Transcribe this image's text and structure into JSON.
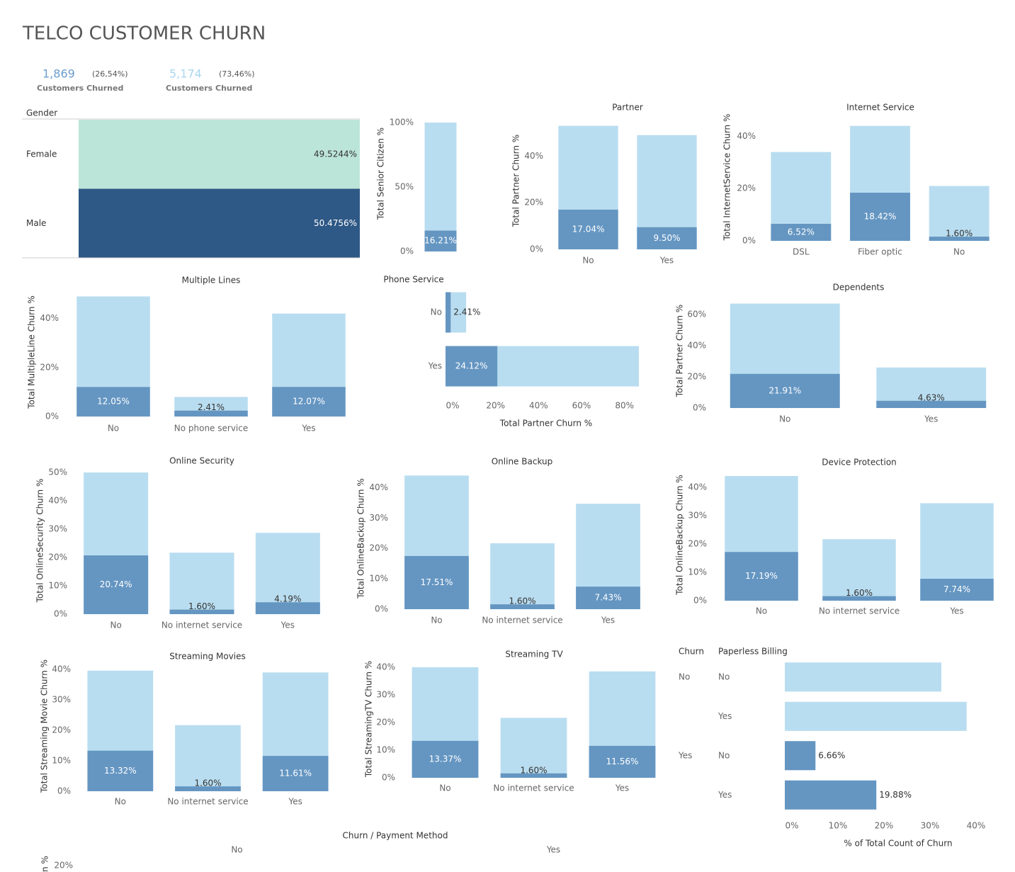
{
  "title": "TELCO CUSTOMER CHURN",
  "kpis": [
    {
      "value": "1,869",
      "share": "(26,54%)",
      "label": "Customers Churned",
      "color": "#6a9ccc"
    },
    {
      "value": "5,174",
      "share": "(73,46%)",
      "label": "Customers Churned",
      "color": "#a9d6ee"
    }
  ],
  "chart_data": [
    {
      "type": "table",
      "title": "Gender",
      "categories": [
        "Female",
        "Male"
      ],
      "values": [
        49.5244,
        50.4756
      ],
      "value_labels": [
        "49.5244%",
        "50.4756%"
      ],
      "colors": [
        "#bce5d9",
        "#2e5885"
      ]
    },
    {
      "type": "bar",
      "y_label": "Total Senior Citizen %",
      "ylim": [
        0,
        100
      ],
      "yticks": [
        {
          "value": 0,
          "label": "0%"
        },
        {
          "value": 50,
          "label": "50%"
        },
        {
          "value": 100,
          "label": "100%"
        }
      ],
      "series": [
        {
          "color": "#b9ddf0",
          "values": [
            100
          ]
        },
        {
          "color": "#6596c2",
          "values": [
            16.21
          ],
          "value_labels": [
            "16.21%"
          ]
        }
      ]
    },
    {
      "type": "bar",
      "title": "Partner",
      "y_label": "Total Partner Churn %",
      "categories": [
        "No",
        "Yes"
      ],
      "ylim": [
        0,
        55
      ],
      "yticks": [
        {
          "value": 0,
          "label": "0%"
        },
        {
          "value": 20,
          "label": "20%"
        },
        {
          "value": 40,
          "label": "40%"
        }
      ],
      "series": [
        {
          "color": "#b9ddf0",
          "values": [
            53,
            49
          ]
        },
        {
          "color": "#6596c2",
          "values": [
            17.04,
            9.5
          ],
          "value_labels": [
            "17.04%",
            "9.50%"
          ]
        }
      ]
    },
    {
      "type": "bar",
      "title": "Internet Service",
      "y_label": "Total InternetService Churn %",
      "categories": [
        "DSL",
        "Fiber optic",
        "No"
      ],
      "ylim": [
        0,
        45
      ],
      "yticks": [
        {
          "value": 0,
          "label": "0%"
        },
        {
          "value": 20,
          "label": "20%"
        },
        {
          "value": 40,
          "label": "40%"
        }
      ],
      "series": [
        {
          "color": "#b9ddf0",
          "values": [
            34,
            44,
            21
          ]
        },
        {
          "color": "#6596c2",
          "values": [
            6.52,
            18.42,
            1.6
          ],
          "value_labels": [
            "6.52%",
            "18.42%",
            "1.60%"
          ]
        }
      ]
    },
    {
      "type": "bar",
      "title": "Multiple Lines",
      "y_label": "Total MultipleLine Churn %",
      "categories": [
        "No",
        "No phone service",
        "Yes"
      ],
      "ylim": [
        0,
        50
      ],
      "yticks": [
        {
          "value": 0,
          "label": "0%"
        },
        {
          "value": 20,
          "label": "20%"
        },
        {
          "value": 40,
          "label": "40%"
        }
      ],
      "series": [
        {
          "color": "#b9ddf0",
          "values": [
            49,
            8,
            42
          ]
        },
        {
          "color": "#6596c2",
          "values": [
            12.05,
            2.41,
            12.07
          ],
          "value_labels": [
            "12.05%",
            "2.41%",
            "12.07%"
          ]
        }
      ]
    },
    {
      "type": "hbar",
      "title": "Phone Service",
      "x_label": "Total Partner Churn %",
      "categories": [
        "No",
        "Yes"
      ],
      "xlim": [
        0,
        90
      ],
      "xticks": [
        {
          "value": 0,
          "label": "0%"
        },
        {
          "value": 20,
          "label": "20%"
        },
        {
          "value": 40,
          "label": "40%"
        },
        {
          "value": 60,
          "label": "60%"
        },
        {
          "value": 80,
          "label": "80%"
        }
      ],
      "series": [
        {
          "color": "#b9ddf0",
          "values": [
            9.6,
            90
          ]
        },
        {
          "color": "#6596c2",
          "values": [
            2.41,
            24.12
          ],
          "value_labels": [
            "2.41%",
            "24.12%"
          ]
        }
      ]
    },
    {
      "type": "bar",
      "title": "Dependents",
      "y_label": "Total Partner Churn %",
      "categories": [
        "No",
        "Yes"
      ],
      "ylim": [
        0,
        70
      ],
      "yticks": [
        {
          "value": 0,
          "label": "0%"
        },
        {
          "value": 20,
          "label": "20%"
        },
        {
          "value": 40,
          "label": "40%"
        },
        {
          "value": 60,
          "label": "60%"
        }
      ],
      "series": [
        {
          "color": "#b9ddf0",
          "values": [
            67,
            26
          ]
        },
        {
          "color": "#6596c2",
          "values": [
            21.91,
            4.63
          ],
          "value_labels": [
            "21.91%",
            "4.63%"
          ]
        }
      ]
    },
    {
      "type": "bar",
      "title": "Online Security",
      "y_label": "Total OnlineSecurity Churn %",
      "categories": [
        "No",
        "No internet service",
        "Yes"
      ],
      "ylim": [
        0,
        50
      ],
      "yticks": [
        {
          "value": 0,
          "label": "0%"
        },
        {
          "value": 10,
          "label": "10%"
        },
        {
          "value": 20,
          "label": "20%"
        },
        {
          "value": 30,
          "label": "30%"
        },
        {
          "value": 40,
          "label": "40%"
        },
        {
          "value": 50,
          "label": "50%"
        }
      ],
      "series": [
        {
          "color": "#b9ddf0",
          "values": [
            50,
            21.7,
            28.7
          ]
        },
        {
          "color": "#6596c2",
          "values": [
            20.74,
            1.6,
            4.19
          ],
          "value_labels": [
            "20.74%",
            "1.60%",
            "4.19%"
          ]
        }
      ]
    },
    {
      "type": "bar",
      "title": "Online Backup",
      "y_label": "Total OnlineBackup Churn %",
      "categories": [
        "No",
        "No internet service",
        "Yes"
      ],
      "ylim": [
        0,
        45
      ],
      "yticks": [
        {
          "value": 0,
          "label": "0%"
        },
        {
          "value": 10,
          "label": "10%"
        },
        {
          "value": 20,
          "label": "20%"
        },
        {
          "value": 30,
          "label": "30%"
        },
        {
          "value": 40,
          "label": "40%"
        }
      ],
      "series": [
        {
          "color": "#b9ddf0",
          "values": [
            44,
            21.7,
            34.7
          ]
        },
        {
          "color": "#6596c2",
          "values": [
            17.51,
            1.6,
            7.43
          ],
          "value_labels": [
            "17.51%",
            "1.60%",
            "7.43%"
          ]
        }
      ]
    },
    {
      "type": "bar",
      "title": "Device Protection",
      "y_label": "Total OnlineBackup Churn %",
      "categories": [
        "No",
        "No internet service",
        "Yes"
      ],
      "ylim": [
        0,
        45
      ],
      "yticks": [
        {
          "value": 0,
          "label": "0%"
        },
        {
          "value": 10,
          "label": "10%"
        },
        {
          "value": 20,
          "label": "20%"
        },
        {
          "value": 30,
          "label": "30%"
        },
        {
          "value": 40,
          "label": "40%"
        }
      ],
      "series": [
        {
          "color": "#b9ddf0",
          "values": [
            44,
            21.7,
            34.4
          ]
        },
        {
          "color": "#6596c2",
          "values": [
            17.19,
            1.6,
            7.74
          ],
          "value_labels": [
            "17.19%",
            "1.60%",
            "7.74%"
          ]
        }
      ]
    },
    {
      "type": "bar",
      "title": "Streaming Movies",
      "y_label": "Total Streaming Movie Churn %",
      "categories": [
        "No",
        "No internet service",
        "Yes"
      ],
      "ylim": [
        0,
        40
      ],
      "yticks": [
        {
          "value": 0,
          "label": "0%"
        },
        {
          "value": 10,
          "label": "10%"
        },
        {
          "value": 20,
          "label": "20%"
        },
        {
          "value": 30,
          "label": "30%"
        },
        {
          "value": 40,
          "label": "40%"
        }
      ],
      "series": [
        {
          "color": "#b9ddf0",
          "values": [
            39.6,
            21.7,
            39
          ]
        },
        {
          "color": "#6596c2",
          "values": [
            13.32,
            1.6,
            11.61
          ],
          "value_labels": [
            "13.32%",
            "1.60%",
            "11.61%"
          ]
        }
      ]
    },
    {
      "type": "bar",
      "title": "Streaming TV",
      "y_label": "Total StreamingTV Churn %",
      "categories": [
        "No",
        "No internet service",
        "Yes"
      ],
      "ylim": [
        0,
        40
      ],
      "yticks": [
        {
          "value": 0,
          "label": "0%"
        },
        {
          "value": 10,
          "label": "10%"
        },
        {
          "value": 20,
          "label": "20%"
        },
        {
          "value": 30,
          "label": "30%"
        },
        {
          "value": 40,
          "label": "40%"
        }
      ],
      "series": [
        {
          "color": "#b9ddf0",
          "values": [
            40,
            21.7,
            38.5
          ]
        },
        {
          "color": "#6596c2",
          "values": [
            13.37,
            1.6,
            11.56
          ],
          "value_labels": [
            "13.37%",
            "1.60%",
            "11.56%"
          ]
        }
      ]
    },
    {
      "type": "hbar",
      "headers": [
        "Churn",
        "Paperless Billing"
      ],
      "groups": [
        "No",
        null,
        "Yes",
        null
      ],
      "categories": [
        "No",
        "Yes",
        "No",
        "Yes"
      ],
      "x_label": "% of Total Count of Churn",
      "xlim": [
        0,
        40
      ],
      "xticks": [
        {
          "value": 0,
          "label": "0%"
        },
        {
          "value": 10,
          "label": "10%"
        },
        {
          "value": 20,
          "label": "20%"
        },
        {
          "value": 30,
          "label": "30%"
        },
        {
          "value": 40,
          "label": "40%"
        }
      ],
      "series": [
        {
          "colors": [
            "#b9ddf0",
            "#b9ddf0",
            "#6596c2",
            "#6596c2"
          ],
          "values": [
            34,
            39.5,
            6.66,
            19.88
          ],
          "value_labels": [
            null,
            null,
            "6.66%",
            "19.88%"
          ]
        }
      ]
    },
    {
      "type": "bar",
      "title": "Churn / Payment Method",
      "y_label": "rn %",
      "categories": [
        "No",
        "Yes"
      ],
      "ylim": [
        0,
        20
      ],
      "yticks": [
        {
          "value": 20,
          "label": "20%"
        }
      ],
      "series": []
    }
  ]
}
